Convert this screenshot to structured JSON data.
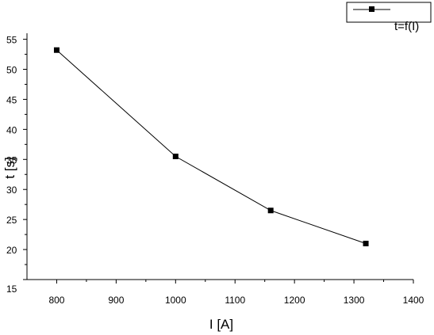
{
  "chart_data": {
    "type": "line",
    "title": "",
    "xlabel": "I  [A]",
    "ylabel": "t [s]",
    "xlim": [
      750,
      1400
    ],
    "ylim": [
      15,
      56
    ],
    "x_ticks": [
      800,
      900,
      1000,
      1100,
      1200,
      1300,
      1400
    ],
    "y_ticks": [
      15,
      20,
      25,
      30,
      35,
      40,
      45,
      50,
      55
    ],
    "grid": false,
    "legend_position": "top-right",
    "series": [
      {
        "name": "t=f(I)",
        "marker": "square",
        "color": "#000000",
        "x": [
          800,
          1000,
          1160,
          1320
        ],
        "y": [
          53.2,
          35.5,
          26.5,
          21.0
        ]
      }
    ]
  }
}
